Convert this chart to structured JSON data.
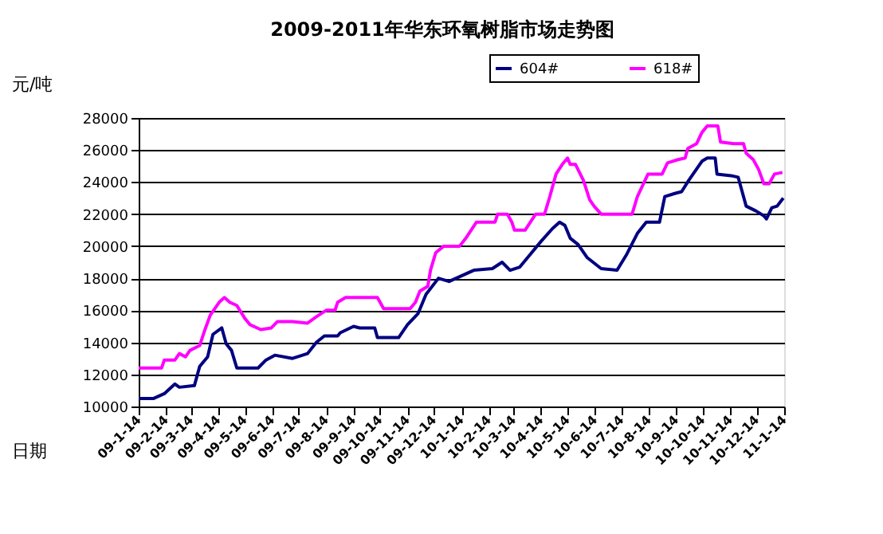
{
  "chart_data": {
    "type": "line",
    "title": "2009-2011年华东环氧树脂市场走势图",
    "xlabel": "日期",
    "ylabel": "元/吨",
    "xlim": [
      "2009-01-14",
      "2011-01-14"
    ],
    "ylim": [
      10000,
      28000
    ],
    "xticks": [
      {
        "value": "2009-01-14",
        "label": "09-1-14"
      },
      {
        "value": "2009-02-14",
        "label": "09-2-14"
      },
      {
        "value": "2009-03-14",
        "label": "09-3-14"
      },
      {
        "value": "2009-04-14",
        "label": "09-4-14"
      },
      {
        "value": "2009-05-14",
        "label": "09-5-14"
      },
      {
        "value": "2009-06-14",
        "label": "09-6-14"
      },
      {
        "value": "2009-07-14",
        "label": "09-7-14"
      },
      {
        "value": "2009-08-14",
        "label": "09-8-14"
      },
      {
        "value": "2009-09-14",
        "label": "09-9-14"
      },
      {
        "value": "2009-10-14",
        "label": "09-10-14"
      },
      {
        "value": "2009-11-14",
        "label": "09-11-14"
      },
      {
        "value": "2009-12-14",
        "label": "09-12-14"
      },
      {
        "value": "2010-01-14",
        "label": "10-1-14"
      },
      {
        "value": "2010-02-14",
        "label": "10-2-14"
      },
      {
        "value": "2010-03-14",
        "label": "10-3-14"
      },
      {
        "value": "2010-04-14",
        "label": "10-4-14"
      },
      {
        "value": "2010-05-14",
        "label": "10-5-14"
      },
      {
        "value": "2010-06-14",
        "label": "10-6-14"
      },
      {
        "value": "2010-07-14",
        "label": "10-7-14"
      },
      {
        "value": "2010-08-14",
        "label": "10-8-14"
      },
      {
        "value": "2010-09-14",
        "label": "10-9-14"
      },
      {
        "value": "2010-10-14",
        "label": "10-10-14"
      },
      {
        "value": "2010-11-14",
        "label": "10-11-14"
      },
      {
        "value": "2010-12-14",
        "label": "10-12-14"
      },
      {
        "value": "2011-01-14",
        "label": "11-1-14"
      }
    ],
    "yticks": [
      10000,
      12000,
      14000,
      16000,
      18000,
      20000,
      22000,
      24000,
      26000,
      28000
    ],
    "grid": "y",
    "legend": "top right",
    "marker": "none",
    "line_style": "solid",
    "series": [
      {
        "name": "604#",
        "color": "#000080",
        "x": [
          "2009-01-14",
          "2009-01-31",
          "2009-02-12",
          "2009-02-24",
          "2009-03-01",
          "2009-03-18",
          "2009-03-24",
          "2009-04-02",
          "2009-04-08",
          "2009-04-18",
          "2009-04-23",
          "2009-04-29",
          "2009-05-05",
          "2009-05-29",
          "2009-06-07",
          "2009-06-17",
          "2009-07-07",
          "2009-07-24",
          "2009-08-03",
          "2009-08-12",
          "2009-08-27",
          "2009-08-30",
          "2009-09-14",
          "2009-09-21",
          "2009-10-08",
          "2009-10-11",
          "2009-11-04",
          "2009-11-14",
          "2009-11-26",
          "2009-12-05",
          "2009-12-19",
          "2009-12-31",
          "2010-01-28",
          "2010-02-18",
          "2010-03-01",
          "2010-03-10",
          "2010-03-21",
          "2010-04-02",
          "2010-04-14",
          "2010-04-27",
          "2010-05-05",
          "2010-05-11",
          "2010-05-17",
          "2010-05-26",
          "2010-06-05",
          "2010-06-21",
          "2010-07-09",
          "2010-07-20",
          "2010-08-01",
          "2010-08-11",
          "2010-08-26",
          "2010-09-01",
          "2010-09-13",
          "2010-09-20",
          "2010-09-28",
          "2010-10-13",
          "2010-10-19",
          "2010-10-28",
          "2010-10-30",
          "2010-11-15",
          "2010-11-23",
          "2010-12-02",
          "2010-12-13",
          "2010-12-22",
          "2010-12-25",
          "2010-12-31",
          "2011-01-06",
          "2011-01-13"
        ],
        "values": [
          10500,
          10500,
          10800,
          11400,
          11200,
          11300,
          12500,
          13100,
          14500,
          14900,
          13900,
          13500,
          12400,
          12400,
          12900,
          13200,
          13000,
          13300,
          14000,
          14400,
          14400,
          14600,
          15000,
          14900,
          14900,
          14300,
          14300,
          15100,
          15800,
          17000,
          18000,
          17800,
          18500,
          18600,
          19000,
          18500,
          18700,
          19500,
          20300,
          21100,
          21500,
          21300,
          20500,
          20100,
          19300,
          18600,
          18500,
          19500,
          20800,
          21500,
          21500,
          23100,
          23300,
          23400,
          24100,
          25300,
          25500,
          25500,
          24500,
          24400,
          24300,
          22500,
          22200,
          21900,
          21700,
          22400,
          22500,
          23000
        ]
      },
      {
        "name": "618#",
        "color": "#ff00ff",
        "x": [
          "2009-01-14",
          "2009-02-09",
          "2009-02-12",
          "2009-02-24",
          "2009-03-01",
          "2009-03-08",
          "2009-03-13",
          "2009-03-24",
          "2009-03-30",
          "2009-04-05",
          "2009-04-15",
          "2009-04-21",
          "2009-04-27",
          "2009-05-05",
          "2009-05-14",
          "2009-05-20",
          "2009-06-01",
          "2009-06-13",
          "2009-06-20",
          "2009-07-07",
          "2009-07-24",
          "2009-08-03",
          "2009-08-14",
          "2009-08-24",
          "2009-08-27",
          "2009-09-05",
          "2009-10-11",
          "2009-10-18",
          "2009-11-17",
          "2009-11-23",
          "2009-11-28",
          "2009-12-07",
          "2009-12-10",
          "2009-12-16",
          "2009-12-25",
          "2010-01-12",
          "2010-01-19",
          "2010-01-31",
          "2010-02-21",
          "2010-02-24",
          "2010-03-07",
          "2010-03-12",
          "2010-03-15",
          "2010-03-27",
          "2010-04-02",
          "2010-04-08",
          "2010-04-18",
          "2010-04-24",
          "2010-05-01",
          "2010-05-08",
          "2010-05-14",
          "2010-05-17",
          "2010-05-23",
          "2010-06-01",
          "2010-06-08",
          "2010-06-13",
          "2010-06-21",
          "2010-07-26",
          "2010-08-01",
          "2010-08-13",
          "2010-08-29",
          "2010-09-04",
          "2010-09-16",
          "2010-09-24",
          "2010-09-27",
          "2010-10-07",
          "2010-10-13",
          "2010-10-19",
          "2010-10-31",
          "2010-11-03",
          "2010-11-18",
          "2010-11-29",
          "2010-12-02",
          "2010-12-10",
          "2010-12-16",
          "2010-12-22",
          "2010-12-28",
          "2011-01-03",
          "2011-01-12"
        ],
        "values": [
          12400,
          12400,
          12900,
          12900,
          13300,
          13100,
          13500,
          13800,
          14800,
          15700,
          16500,
          16800,
          16500,
          16300,
          15500,
          15100,
          14800,
          14900,
          15300,
          15300,
          15200,
          15600,
          16000,
          16000,
          16500,
          16800,
          16800,
          16100,
          16100,
          16500,
          17200,
          17500,
          18500,
          19600,
          20000,
          20000,
          20500,
          21500,
          21500,
          22000,
          22000,
          21500,
          21000,
          21000,
          21500,
          22000,
          22000,
          23100,
          24500,
          25100,
          25500,
          25100,
          25100,
          24100,
          22900,
          22500,
          22000,
          22000,
          23100,
          24500,
          24500,
          25200,
          25400,
          25500,
          26100,
          26400,
          27100,
          27500,
          27500,
          26500,
          26400,
          26400,
          25800,
          25400,
          24800,
          23900,
          23900,
          24500,
          24600
        ]
      }
    ]
  }
}
